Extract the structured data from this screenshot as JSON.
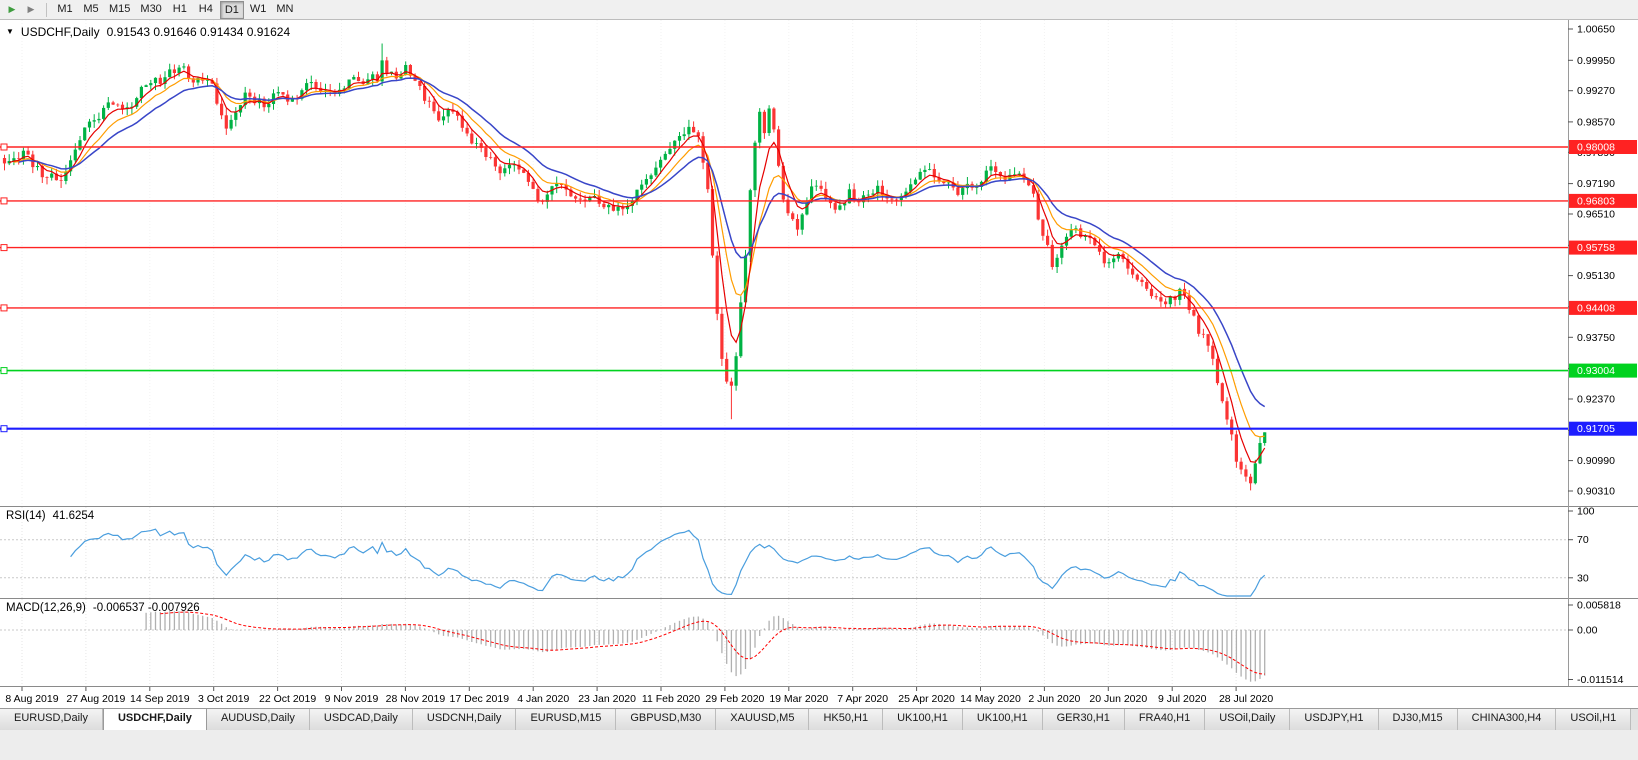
{
  "toolbar": {
    "timeframes": [
      "M1",
      "M5",
      "M15",
      "M30",
      "H1",
      "H4",
      "D1",
      "W1",
      "MN"
    ],
    "active_timeframe": "D1"
  },
  "chart": {
    "collapse_icon": "▼",
    "symbol_period": "USDCHF,Daily",
    "ohlc": "0.91543 0.91646 0.91434 0.91624",
    "open": "0.91543",
    "high": "0.91646",
    "low": "0.91434",
    "close": "0.91624",
    "price_ticks": [
      "1.00650",
      "0.99950",
      "0.99270",
      "0.98570",
      "0.97890",
      "0.97190",
      "0.96510",
      "0.95810",
      "0.95130",
      "0.94430",
      "0.93750",
      "0.93050",
      "0.92370",
      "0.91670",
      "0.90990",
      "0.90310"
    ],
    "hlines": [
      {
        "label": "0.98008",
        "price": 0.98008,
        "color": "#ff2222",
        "width": 1.4
      },
      {
        "label": "0.96803",
        "price": 0.96803,
        "color": "#ff2222",
        "width": 1.4
      },
      {
        "label": "0.95758",
        "price": 0.95758,
        "color": "#ff2222",
        "width": 1.4
      },
      {
        "label": "0.94408",
        "price": 0.94408,
        "color": "#ff2222",
        "width": 1.4
      },
      {
        "label": "0.93004",
        "price": 0.93004,
        "color": "#00d21f",
        "width": 1.6
      },
      {
        "label": "0.91705",
        "price": 0.91705,
        "color": "#1d1dff",
        "width": 2.2
      }
    ],
    "dates": [
      "8 Aug 2019",
      "27 Aug 2019",
      "14 Sep 2019",
      "3 Oct 2019",
      "22 Oct 2019",
      "9 Nov 2019",
      "28 Nov 2019",
      "17 Dec 2019",
      "4 Jan 2020",
      "23 Jan 2020",
      "11 Feb 2020",
      "29 Feb 2020",
      "19 Mar 2020",
      "7 Apr 2020",
      "25 Apr 2020",
      "14 May 2020",
      "2 Jun 2020",
      "20 Jun 2020",
      "9 Jul 2020",
      "28 Jul 2020"
    ]
  },
  "rsi": {
    "name": "RSI(14)",
    "value": "41.6254",
    "axis": [
      "100",
      "70",
      "30"
    ],
    "levels": [
      70,
      30
    ]
  },
  "macd": {
    "name": "MACD(12,26,9)",
    "values": "-0.006537 -0.007926",
    "axis_top": "0.005818",
    "axis_zero": "0.00",
    "axis_bottom": "-0.011514"
  },
  "tabs": {
    "active_index": 1,
    "items": [
      "EURUSD,Daily",
      "USDCHF,Daily",
      "AUDUSD,Daily",
      "USDCAD,Daily",
      "USDCNH,Daily",
      "EURUSD,M15",
      "GBPUSD,M30",
      "XAUUSD,M5",
      "HK50,H1",
      "UK100,H1",
      "UK100,H1",
      "GER30,H1",
      "FRA40,H1",
      "USOil,Daily",
      "USDJPY,H1",
      "DJ30,M15",
      "CHINA300,H4",
      "USOil,H1"
    ]
  },
  "chart_data": {
    "type": "candlestick",
    "symbol": "USDCHF",
    "timeframe": "Daily",
    "n": 268,
    "seed": 11,
    "noise": 0.0022,
    "last_close": 0.91624,
    "price_min": 0.9031,
    "price_max": 1.0065,
    "keypoints": [
      [
        0,
        0.977
      ],
      [
        4,
        0.9788
      ],
      [
        8,
        0.9742
      ],
      [
        12,
        0.9728
      ],
      [
        15,
        0.9792
      ],
      [
        17,
        0.9845
      ],
      [
        20,
        0.9872
      ],
      [
        23,
        0.9906
      ],
      [
        26,
        0.9888
      ],
      [
        29,
        0.9926
      ],
      [
        33,
        0.9952
      ],
      [
        37,
        0.9985
      ],
      [
        40,
        0.995
      ],
      [
        44,
        0.9938
      ],
      [
        47,
        0.984
      ],
      [
        51,
        0.992
      ],
      [
        55,
        0.9898
      ],
      [
        58,
        0.9926
      ],
      [
        61,
        0.9898
      ],
      [
        64,
        0.9954
      ],
      [
        68,
        0.9922
      ],
      [
        71,
        0.9928
      ],
      [
        74,
        0.996
      ],
      [
        77,
        0.9948
      ],
      [
        79,
        0.9958
      ],
      [
        80,
        1.0
      ],
      [
        81,
        0.9968
      ],
      [
        83,
        0.9958
      ],
      [
        85,
        0.9974
      ],
      [
        88,
        0.993
      ],
      [
        92,
        0.9868
      ],
      [
        95,
        0.988
      ],
      [
        98,
        0.9822
      ],
      [
        101,
        0.98
      ],
      [
        105,
        0.9748
      ],
      [
        108,
        0.9762
      ],
      [
        112,
        0.9706
      ],
      [
        114,
        0.9672
      ],
      [
        117,
        0.9726
      ],
      [
        120,
        0.97
      ],
      [
        125,
        0.9682
      ],
      [
        128,
        0.9662
      ],
      [
        131,
        0.9656
      ],
      [
        134,
        0.9702
      ],
      [
        136,
        0.9732
      ],
      [
        139,
        0.9772
      ],
      [
        142,
        0.9812
      ],
      [
        145,
        0.9846
      ],
      [
        147,
        0.9822
      ],
      [
        149,
        0.9702
      ],
      [
        150,
        0.9552
      ],
      [
        151,
        0.9422
      ],
      [
        152,
        0.9332
      ],
      [
        153,
        0.9285
      ],
      [
        154,
        0.9262
      ],
      [
        155,
        0.933
      ],
      [
        156,
        0.9452
      ],
      [
        157,
        0.9562
      ],
      [
        158,
        0.97
      ],
      [
        159,
        0.982
      ],
      [
        160,
        0.9872
      ],
      [
        161,
        0.984
      ],
      [
        162,
        0.9882
      ],
      [
        163,
        0.983
      ],
      [
        164,
        0.9752
      ],
      [
        165,
        0.9692
      ],
      [
        166,
        0.9642
      ],
      [
        168,
        0.9622
      ],
      [
        170,
        0.9682
      ],
      [
        172,
        0.9722
      ],
      [
        174,
        0.9692
      ],
      [
        176,
        0.9652
      ],
      [
        179,
        0.97
      ],
      [
        182,
        0.9682
      ],
      [
        185,
        0.9716
      ],
      [
        188,
        0.9682
      ],
      [
        191,
        0.9706
      ],
      [
        193,
        0.9736
      ],
      [
        196,
        0.9752
      ],
      [
        199,
        0.9716
      ],
      [
        202,
        0.97
      ],
      [
        206,
        0.9722
      ],
      [
        209,
        0.9756
      ],
      [
        212,
        0.9722
      ],
      [
        215,
        0.9744
      ],
      [
        218,
        0.9692
      ],
      [
        220,
        0.9602
      ],
      [
        222,
        0.9542
      ],
      [
        224,
        0.9576
      ],
      [
        227,
        0.9622
      ],
      [
        230,
        0.9586
      ],
      [
        233,
        0.9542
      ],
      [
        236,
        0.9562
      ],
      [
        239,
        0.9516
      ],
      [
        242,
        0.9482
      ],
      [
        245,
        0.9452
      ],
      [
        247,
        0.9456
      ],
      [
        249,
        0.9482
      ],
      [
        251,
        0.9442
      ],
      [
        253,
        0.9392
      ],
      [
        255,
        0.9352
      ],
      [
        257,
        0.9282
      ],
      [
        259,
        0.9192
      ],
      [
        261,
        0.9102
      ],
      [
        263,
        0.9062
      ],
      [
        264,
        0.9046
      ],
      [
        265,
        0.9092
      ],
      [
        266,
        0.913
      ],
      [
        267,
        0.91624
      ]
    ],
    "wick_ext": {
      "80": 0.0038,
      "154": -0.0075,
      "264": -0.0016
    },
    "ma_periods": {
      "fast": 5,
      "mid": 10,
      "slow": 18
    },
    "rsi_period": 14,
    "macd_periods": [
      12,
      26,
      9
    ],
    "colors": {
      "bull": "#00b244",
      "bear": "#fb3434",
      "ma_fast": "#e60000",
      "ma_mid": "#ff9d00",
      "ma_slow": "#3946c8",
      "rsi": "#4a9ede",
      "macd_hist": "#b0b0b0",
      "macd_signal": "#ff0000"
    }
  }
}
